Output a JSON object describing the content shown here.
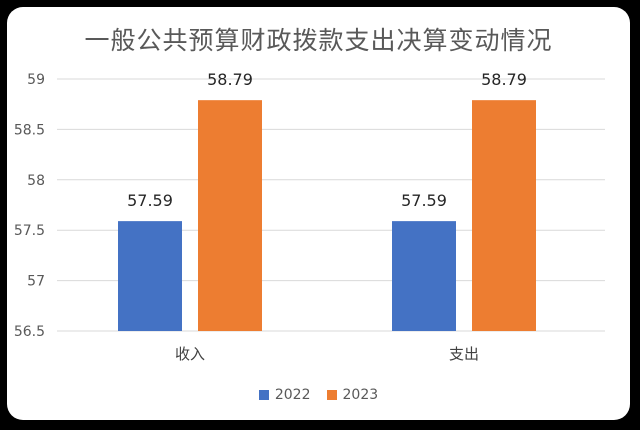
{
  "chart_data": {
    "type": "bar",
    "title": "一般公共预算财政拨款支出决算变动情况",
    "categories": [
      "收入",
      "支出"
    ],
    "series": [
      {
        "name": "2022",
        "values": [
          57.59,
          57.59
        ],
        "color": "#4472C4"
      },
      {
        "name": "2023",
        "values": [
          58.79,
          58.79
        ],
        "color": "#ED7D31"
      }
    ],
    "data_labels": [
      "57.59",
      "58.79"
    ],
    "ylim": [
      56.5,
      59
    ],
    "yticks": [
      "56.5",
      "57",
      "57.5",
      "58",
      "58.5",
      "59"
    ],
    "grid": true,
    "legend_position": "bottom"
  }
}
